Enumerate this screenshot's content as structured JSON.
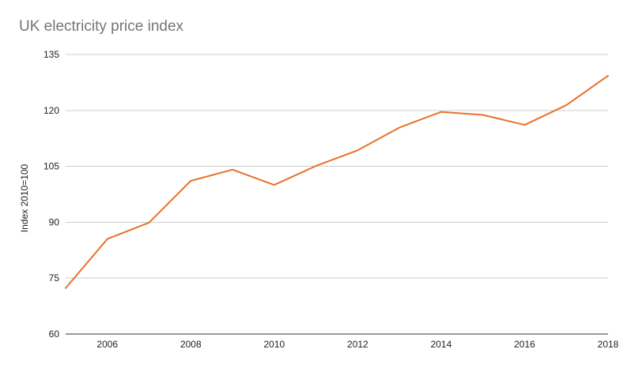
{
  "chart_data": {
    "type": "line",
    "title": "UK electricity price index",
    "xlabel": "",
    "ylabel": "Index 2010=100",
    "xlim": [
      2005,
      2018
    ],
    "ylim": [
      60,
      135
    ],
    "y_ticks": [
      60,
      75,
      90,
      105,
      120,
      135
    ],
    "x_ticks": [
      2006,
      2008,
      2010,
      2012,
      2014,
      2016,
      2018
    ],
    "grid": true,
    "legend": "none",
    "series": [
      {
        "color": "#e8712a",
        "x": [
          2005,
          2006,
          2007,
          2008,
          2009,
          2010,
          2011,
          2012,
          2013,
          2014,
          2015,
          2016,
          2017,
          2018
        ],
        "y": [
          72.3,
          85.5,
          89.9,
          101.1,
          104.1,
          100.0,
          105.1,
          109.3,
          115.4,
          119.6,
          118.8,
          116.1,
          121.4,
          129.3
        ]
      }
    ]
  }
}
